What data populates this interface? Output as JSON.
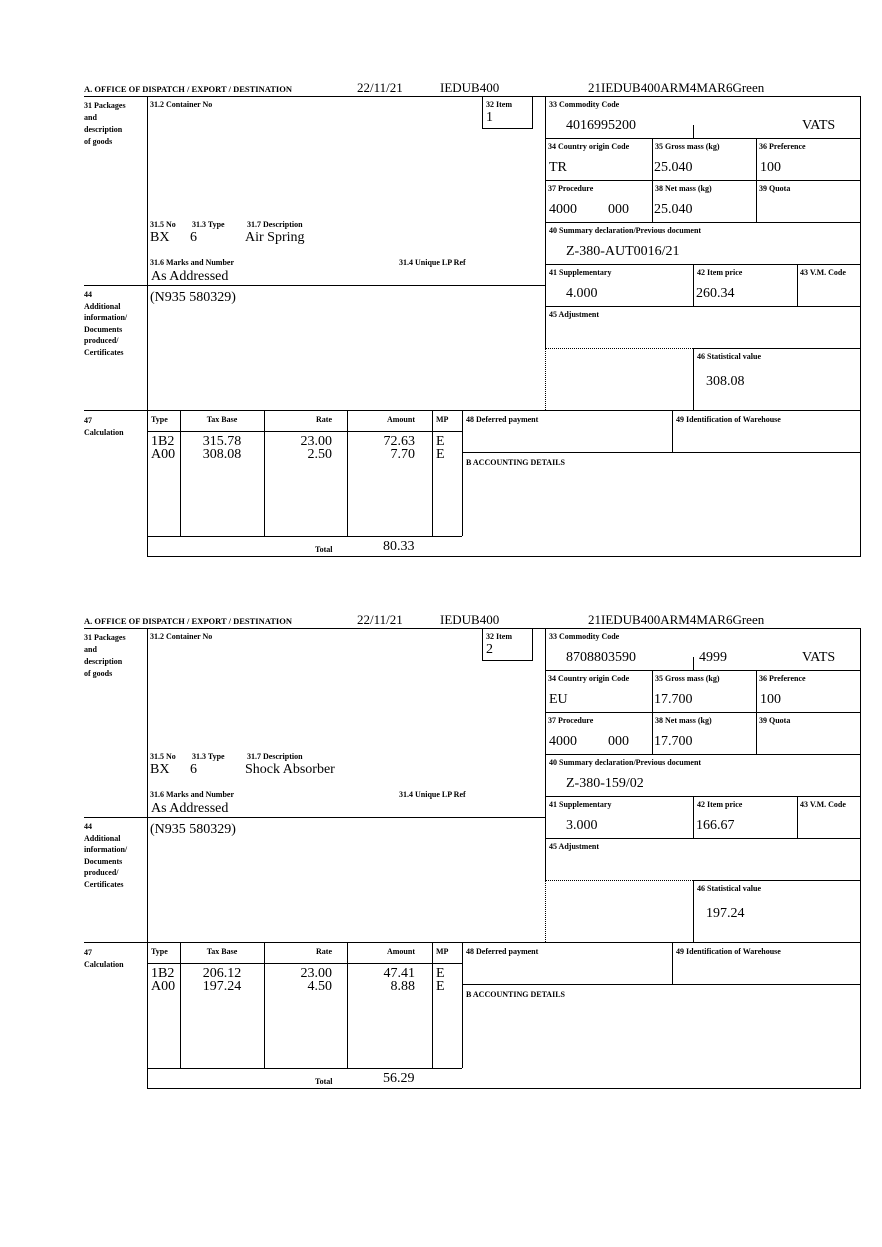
{
  "labels": {
    "office": "A.  OFFICE OF DISPATCH / EXPORT / DESTINATION",
    "packages": "31 Packages and description of goods",
    "packages_lines": [
      "31 Packages",
      "and",
      "description",
      "of goods"
    ],
    "container": "31.2 Container No",
    "item": "32 Item",
    "no": "31.5 No",
    "type": "31.3 Type",
    "description": "31.7 Description",
    "marks": "31.6 Marks and Number",
    "unique_ref": "31.4 Unique LP Ref",
    "commodity": "33 Commodity Code",
    "country": "34 Country origin Code",
    "gross": "35 Gross mass (kg)",
    "preference": "36 Preference",
    "procedure": "37 Procedure",
    "net": "38 Net mass (kg)",
    "quota": "39 Quota",
    "summary": "40 Summary declaration/Previous document",
    "supplementary": "41 Supplementary",
    "item_price": "42 Item price",
    "vm_code": "43 V.M. Code",
    "additional_lines": [
      "44",
      "Additional",
      "information/",
      "Documents",
      "produced/",
      "Certificates"
    ],
    "adjustment": "45 Adjustment",
    "statistical": "46 Statistical value",
    "calc_lines": [
      "47",
      "Calculation"
    ],
    "calc_headers": [
      "Type",
      "Tax Base",
      "Rate",
      "Amount",
      "MP"
    ],
    "deferred": "48 Deferred payment",
    "warehouse": "49 Identification of Warehouse",
    "accounting": "B ACCOUNTING DETAILS",
    "total": "Total"
  },
  "items": [
    {
      "date": "22/11/21",
      "office_code": "IEDUB400",
      "reference": "21IEDUB400ARM4MAR6Green",
      "item_no": "1",
      "pkg_no": "BX",
      "pkg_type": "6",
      "description": "Air Spring",
      "marks": "As Addressed",
      "commodity_code": "4016995200",
      "commodity_extra": "",
      "vats": "VATS",
      "country": "TR",
      "gross_mass": "25.040",
      "preference": "100",
      "procedure": "4000",
      "procedure_extra": "000",
      "net_mass": "25.040",
      "summary_doc": "Z-380-AUT0016/21",
      "supplementary": "4.000",
      "item_price": "260.34",
      "additional_info": "(N935 580329)",
      "statistical_value": "308.08",
      "calc_rows": [
        {
          "type": "1B2",
          "base": "315.78",
          "rate": "23.00",
          "amount": "72.63",
          "mp": "E"
        },
        {
          "type": "A00",
          "base": "308.08",
          "rate": "2.50",
          "amount": "7.70",
          "mp": "E"
        }
      ],
      "total": "80.33"
    },
    {
      "date": "22/11/21",
      "office_code": "IEDUB400",
      "reference": "21IEDUB400ARM4MAR6Green",
      "item_no": "2",
      "pkg_no": "BX",
      "pkg_type": "6",
      "description": "Shock Absorber",
      "marks": "As Addressed",
      "commodity_code": "8708803590",
      "commodity_extra": "4999",
      "vats": "VATS",
      "country": "EU",
      "gross_mass": "17.700",
      "preference": "100",
      "procedure": "4000",
      "procedure_extra": "000",
      "net_mass": "17.700",
      "summary_doc": "Z-380-159/02",
      "supplementary": "3.000",
      "item_price": "166.67",
      "additional_info": "(N935 580329)",
      "statistical_value": "197.24",
      "calc_rows": [
        {
          "type": "1B2",
          "base": "206.12",
          "rate": "23.00",
          "amount": "47.41",
          "mp": "E"
        },
        {
          "type": "A00",
          "base": "197.24",
          "rate": "4.50",
          "amount": "8.88",
          "mp": "E"
        }
      ],
      "total": "56.29"
    }
  ]
}
